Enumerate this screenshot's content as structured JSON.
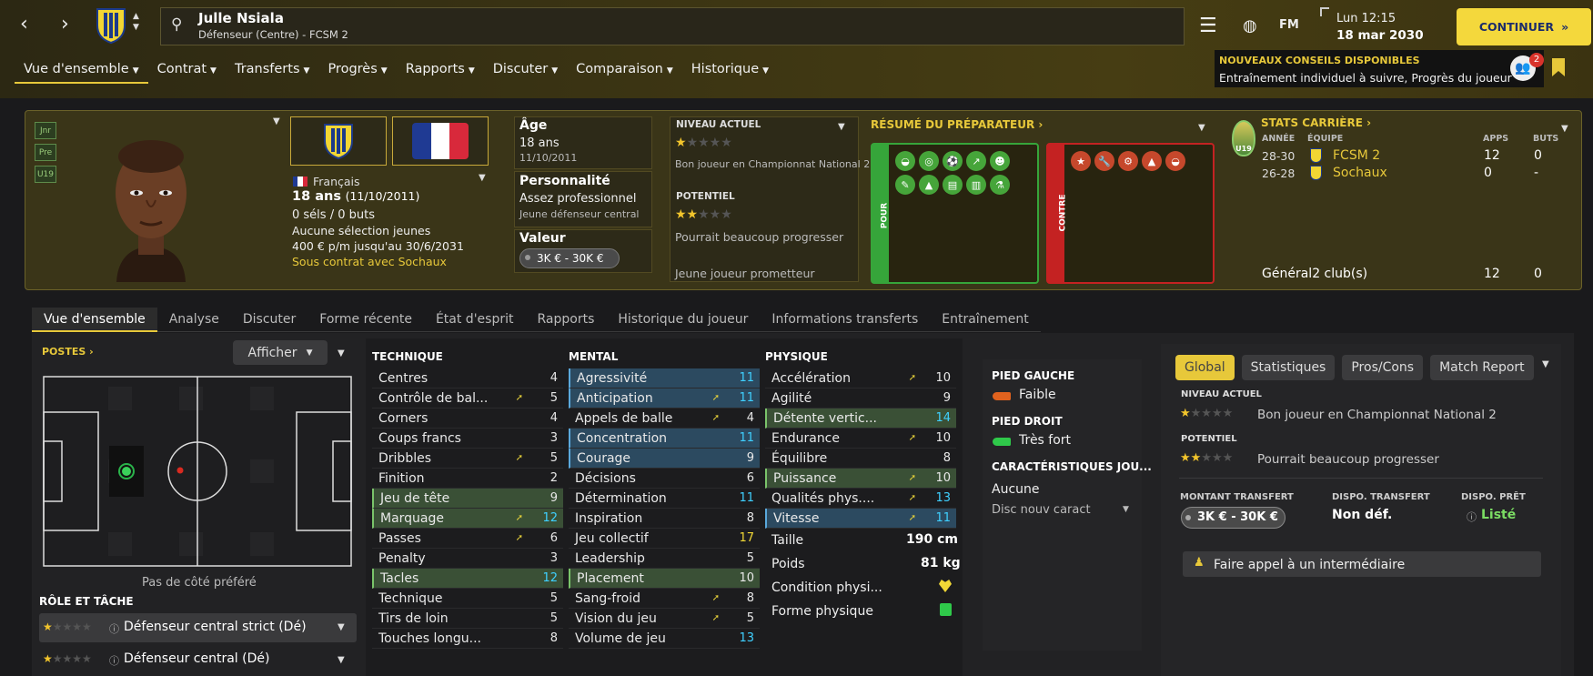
{
  "header": {
    "player_name": "Julle Nsiala",
    "player_subtitle": "Défenseur (Centre) - FCSM 2",
    "fm_label": "FM",
    "date_line1": "Lun 12:15",
    "date_line2": "18 mar 2030",
    "continue_label": "CONTINUER",
    "advice_title": "NOUVEAUX CONSEILS DISPONIBLES",
    "advice_text": "Entraînement individuel à suivre, Progrès du joueur",
    "advice_count": "2"
  },
  "menu": [
    "Vue d'ensemble",
    "Contrat",
    "Transferts",
    "Progrès",
    "Rapports",
    "Discuter",
    "Comparaison",
    "Historique"
  ],
  "side_tags": [
    "Jnr",
    "Pre",
    "U19"
  ],
  "profile": {
    "nationality": "Français",
    "age_line": "18 ans",
    "age_birth": "(11/10/2011)",
    "caps": "0 séls / 0 buts",
    "youth": "Aucune sélection jeunes",
    "wage": "400 € p/m jusqu'au 30/6/2031",
    "contract": "Sous contrat avec Sochaux"
  },
  "info": {
    "age_label": "Âge",
    "age_value": "18 ans",
    "age_date": "11/10/2011",
    "pers_label": "Personnalité",
    "pers_value": "Assez professionnel",
    "pers_sub": "Jeune défenseur central",
    "value_label": "Valeur",
    "value_value": "3K € - 30K €"
  },
  "ability": {
    "current_label": "NIVEAU ACTUEL",
    "current_text": "Bon joueur en Championnat National 2",
    "potential_label": "POTENTIEL",
    "potential_text": "Pourrait beaucoup progresser",
    "young_text": "Jeune joueur prometteur",
    "current_stars": 1,
    "potential_stars": 2
  },
  "coach": {
    "title": "RÉSUMÉ DU PRÉPARATEUR",
    "pour_label": "POUR",
    "contre_label": "CONTRE"
  },
  "career": {
    "title": "STATS CARRIÈRE",
    "badge": "U19",
    "h_year": "ANNÉE",
    "h_team": "ÉQUIPE",
    "h_apps": "APPS",
    "h_goals": "BUTS",
    "rows": [
      {
        "year": "28-30",
        "team": "FCSM 2",
        "apps": "12",
        "goals": "0"
      },
      {
        "year": "26-28",
        "team": "Sochaux",
        "apps": "0",
        "goals": "-"
      }
    ],
    "total_label": "Général",
    "total_clubs": "2 club(s)",
    "total_apps": "12",
    "total_goals": "0"
  },
  "tabs": [
    "Vue d'ensemble",
    "Analyse",
    "Discuter",
    "Forme récente",
    "État d'esprit",
    "Rapports",
    "Historique du joueur",
    "Informations transferts",
    "Entraînement"
  ],
  "positions": {
    "title": "POSTES",
    "show_label": "Afficher",
    "side_note": "Pas de côté préféré",
    "role_title": "RÔLE ET TÂCHE",
    "roles": [
      "Défenseur central strict (Dé)",
      "Défenseur central (Dé)"
    ]
  },
  "attributes": {
    "technique_title": "TECHNIQUE",
    "mental_title": "MENTAL",
    "physique_title": "PHYSIQUE",
    "technique": [
      {
        "name": "Centres",
        "value": "4",
        "hl": "",
        "arrow": false,
        "color": ""
      },
      {
        "name": "Contrôle de bal...",
        "value": "5",
        "hl": "",
        "arrow": true,
        "color": ""
      },
      {
        "name": "Corners",
        "value": "4",
        "hl": "",
        "arrow": false,
        "color": ""
      },
      {
        "name": "Coups francs",
        "value": "3",
        "hl": "",
        "arrow": false,
        "color": ""
      },
      {
        "name": "Dribbles",
        "value": "5",
        "hl": "",
        "arrow": true,
        "color": ""
      },
      {
        "name": "Finition",
        "value": "2",
        "hl": "",
        "arrow": false,
        "color": ""
      },
      {
        "name": "Jeu de tête",
        "value": "9",
        "hl": "g",
        "arrow": false,
        "color": ""
      },
      {
        "name": "Marquage",
        "value": "12",
        "hl": "g",
        "arrow": true,
        "color": "c"
      },
      {
        "name": "Passes",
        "value": "6",
        "hl": "",
        "arrow": true,
        "color": ""
      },
      {
        "name": "Penalty",
        "value": "3",
        "hl": "",
        "arrow": false,
        "color": ""
      },
      {
        "name": "Tacles",
        "value": "12",
        "hl": "g",
        "arrow": false,
        "color": "c"
      },
      {
        "name": "Technique",
        "value": "5",
        "hl": "",
        "arrow": false,
        "color": ""
      },
      {
        "name": "Tirs de loin",
        "value": "5",
        "hl": "",
        "arrow": false,
        "color": ""
      },
      {
        "name": "Touches longu...",
        "value": "8",
        "hl": "",
        "arrow": false,
        "color": ""
      }
    ],
    "mental": [
      {
        "name": "Agressivité",
        "value": "11",
        "hl": "b",
        "arrow": false,
        "color": "c"
      },
      {
        "name": "Anticipation",
        "value": "11",
        "hl": "b",
        "arrow": true,
        "color": "c"
      },
      {
        "name": "Appels de balle",
        "value": "4",
        "hl": "",
        "arrow": true,
        "color": ""
      },
      {
        "name": "Concentration",
        "value": "11",
        "hl": "b",
        "arrow": false,
        "color": "c"
      },
      {
        "name": "Courage",
        "value": "9",
        "hl": "b",
        "arrow": false,
        "color": ""
      },
      {
        "name": "Décisions",
        "value": "6",
        "hl": "",
        "arrow": false,
        "color": ""
      },
      {
        "name": "Détermination",
        "value": "11",
        "hl": "",
        "arrow": false,
        "color": "c"
      },
      {
        "name": "Inspiration",
        "value": "8",
        "hl": "",
        "arrow": false,
        "color": ""
      },
      {
        "name": "Jeu collectif",
        "value": "17",
        "hl": "",
        "arrow": false,
        "color": "y"
      },
      {
        "name": "Leadership",
        "value": "5",
        "hl": "",
        "arrow": false,
        "color": ""
      },
      {
        "name": "Placement",
        "value": "10",
        "hl": "g",
        "arrow": false,
        "color": ""
      },
      {
        "name": "Sang-froid",
        "value": "8",
        "hl": "",
        "arrow": true,
        "color": ""
      },
      {
        "name": "Vision du jeu",
        "value": "5",
        "hl": "",
        "arrow": true,
        "color": ""
      },
      {
        "name": "Volume de jeu",
        "value": "13",
        "hl": "",
        "arrow": false,
        "color": "c"
      }
    ],
    "physique": [
      {
        "name": "Accélération",
        "value": "10",
        "hl": "",
        "arrow": true,
        "color": ""
      },
      {
        "name": "Agilité",
        "value": "9",
        "hl": "",
        "arrow": false,
        "color": ""
      },
      {
        "name": "Détente vertic...",
        "value": "14",
        "hl": "g",
        "arrow": false,
        "color": "c"
      },
      {
        "name": "Endurance",
        "value": "10",
        "hl": "",
        "arrow": true,
        "color": ""
      },
      {
        "name": "Équilibre",
        "value": "8",
        "hl": "",
        "arrow": false,
        "color": ""
      },
      {
        "name": "Puissance",
        "value": "10",
        "hl": "g",
        "arrow": true,
        "color": ""
      },
      {
        "name": "Qualités phys....",
        "value": "13",
        "hl": "",
        "arrow": true,
        "color": "c"
      },
      {
        "name": "Vitesse",
        "value": "11",
        "hl": "b",
        "arrow": true,
        "color": "c"
      }
    ],
    "height_label": "Taille",
    "height_value": "190 cm",
    "weight_label": "Poids",
    "weight_value": "81 kg",
    "condition_label": "Condition physi...",
    "form_label": "Forme physique"
  },
  "feet": {
    "left_title": "PIED GAUCHE",
    "left_value": "Faible",
    "right_title": "PIED DROIT",
    "right_value": "Très fort",
    "traits_title": "CARACTÉRISTIQUES JOU...",
    "traits_value": "Aucune",
    "traits_select": "Disc nouv caract"
  },
  "panel": {
    "tabs": [
      "Global",
      "Statistiques",
      "Pros/Cons",
      "Match Report"
    ],
    "current_label": "NIVEAU ACTUEL",
    "current_text": "Bon joueur en Championnat National 2",
    "potential_label": "POTENTIEL",
    "potential_text": "Pourrait beaucoup progresser",
    "transfer_label": "MONTANT TRANSFERT",
    "transfer_value": "3K € - 30K €",
    "dispo_label": "DISPO. TRANSFERT",
    "dispo_value": "Non déf.",
    "loan_label": "DISPO. PRÊT",
    "loan_value": "Listé",
    "agent_button": "Faire appel à un intermédiaire"
  }
}
